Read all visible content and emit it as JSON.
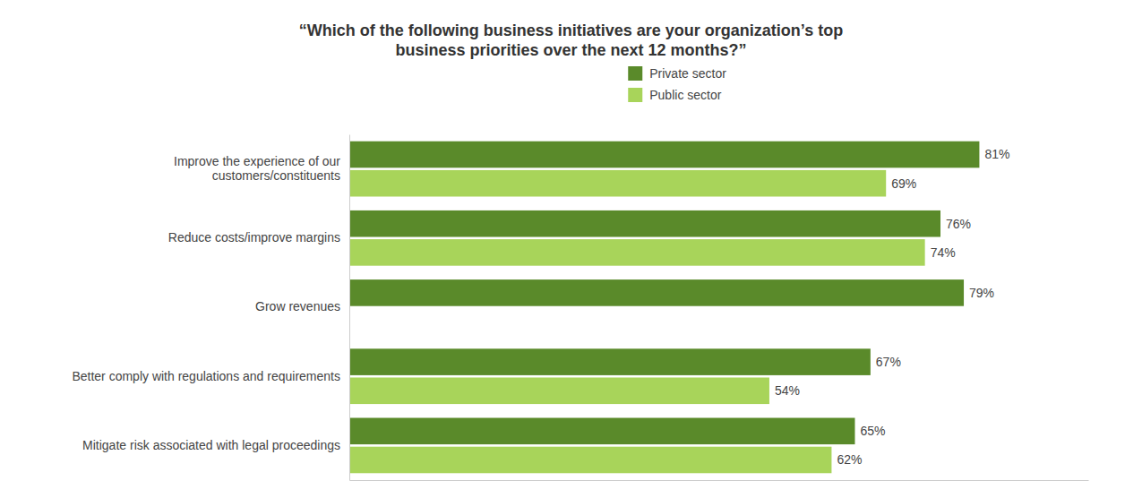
{
  "chart_data": {
    "type": "bar",
    "orientation": "horizontal",
    "title": "“Which of the following business initiatives are your organization’s top\nbusiness priorities over the next 12 months?”",
    "categories": [
      "Mitigate risk associated with legal proceedings",
      "Better comply with regulations and requirements",
      "Grow revenues",
      "Reduce costs/improve margins",
      "Improve the experience of our\ncustomers/constituents"
    ],
    "series": [
      {
        "name": "Private sector",
        "color": "#5a8a2a",
        "values": [
          65,
          67,
          79,
          76,
          81
        ],
        "value_labels": [
          "65%",
          "67%",
          "79%",
          "76%",
          "81%"
        ]
      },
      {
        "name": "Public sector",
        "color": "#a8d45a",
        "values": [
          62,
          54,
          0,
          74,
          69
        ],
        "value_labels": [
          "62%",
          "54%",
          null,
          "74%",
          "69%"
        ]
      }
    ],
    "xlim": [
      0,
      95
    ],
    "grid": false,
    "legend": "top",
    "data_labels": true,
    "tick_labels": "y"
  }
}
